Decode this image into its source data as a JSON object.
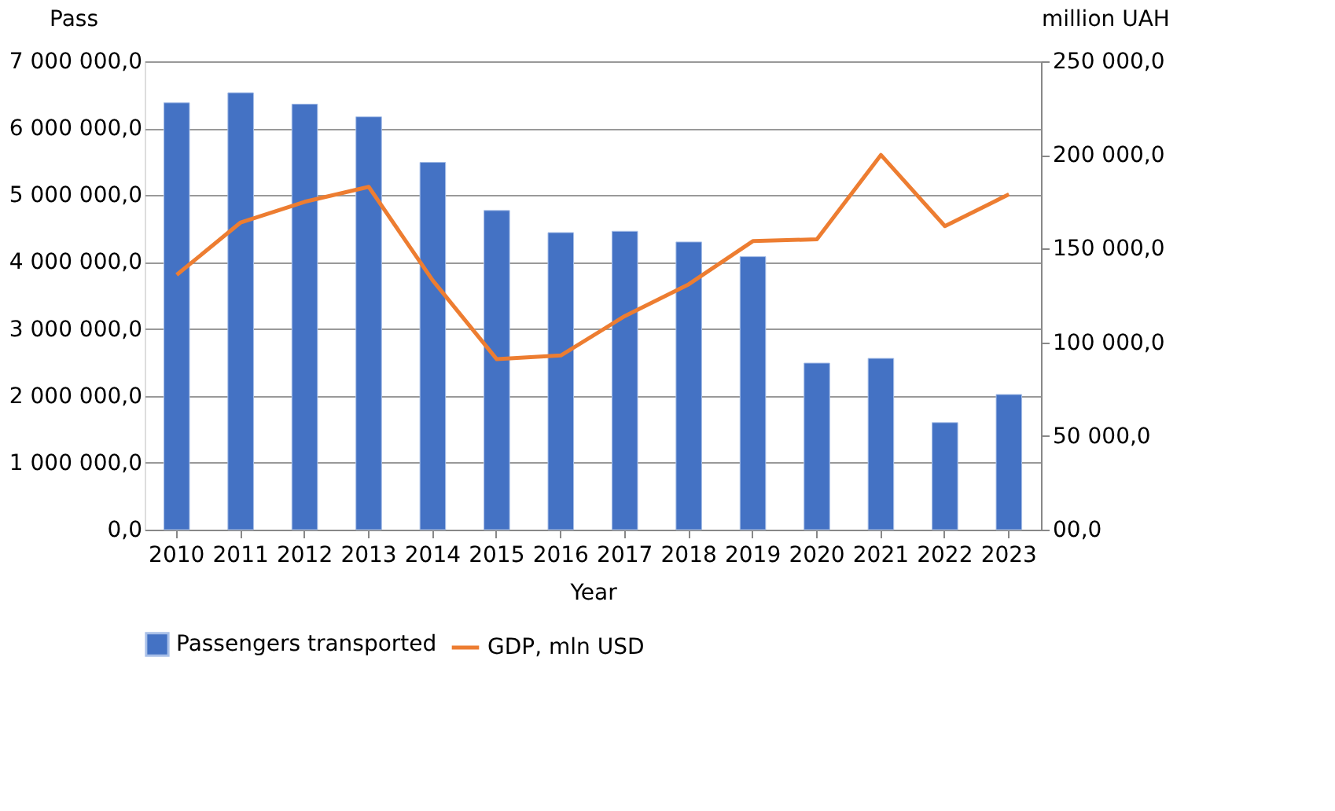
{
  "chart_data": {
    "type": "bar",
    "xlabel": "Year",
    "ylabel": "Pass",
    "y2label": "million UAH",
    "categories": [
      "2010",
      "2011",
      "2012",
      "2013",
      "2014",
      "2015",
      "2016",
      "2017",
      "2018",
      "2019",
      "2020",
      "2021",
      "2022",
      "2023"
    ],
    "series": [
      {
        "name": "Passengers transported",
        "color": "#4472c4",
        "values": [
          6380000,
          6530000,
          6360000,
          6170000,
          5490000,
          4770000,
          4440000,
          4460000,
          4300000,
          4080000,
          2490000,
          2560000,
          1600000,
          2020000
        ]
      },
      {
        "name": "GDP, mln USD",
        "type": "line",
        "axis": "y2",
        "color": "#ed7d31",
        "values": [
          136000,
          164000,
          175000,
          183000,
          133000,
          91000,
          93000,
          114000,
          131000,
          154000,
          155000,
          200000,
          162000,
          179000
        ]
      }
    ],
    "ylim": [
      0,
      7000000
    ],
    "yticks": [
      {
        "value": 0,
        "label": "0,0"
      },
      {
        "value": 1000000,
        "label": "1 000 000,0"
      },
      {
        "value": 2000000,
        "label": "2 000 000,0"
      },
      {
        "value": 3000000,
        "label": "3 000 000,0"
      },
      {
        "value": 4000000,
        "label": "4 000 000,0"
      },
      {
        "value": 5000000,
        "label": "5 000 000,0"
      },
      {
        "value": 6000000,
        "label": "6 000 000,0"
      },
      {
        "value": 7000000,
        "label": "7 000 000,0"
      }
    ],
    "y2lim": [
      0,
      250000
    ],
    "y2ticks": [
      {
        "value": 0,
        "label": "00,0"
      },
      {
        "value": 50000,
        "label": "50 000,0"
      },
      {
        "value": 100000,
        "label": "100 000,0"
      },
      {
        "value": 150000,
        "label": "150 000,0"
      },
      {
        "value": 200000,
        "label": "200 000,0"
      },
      {
        "value": 250000,
        "label": "250 000,0"
      }
    ],
    "grid": "y",
    "legend": "bottom",
    "line_style": "solid",
    "marker": "none"
  }
}
